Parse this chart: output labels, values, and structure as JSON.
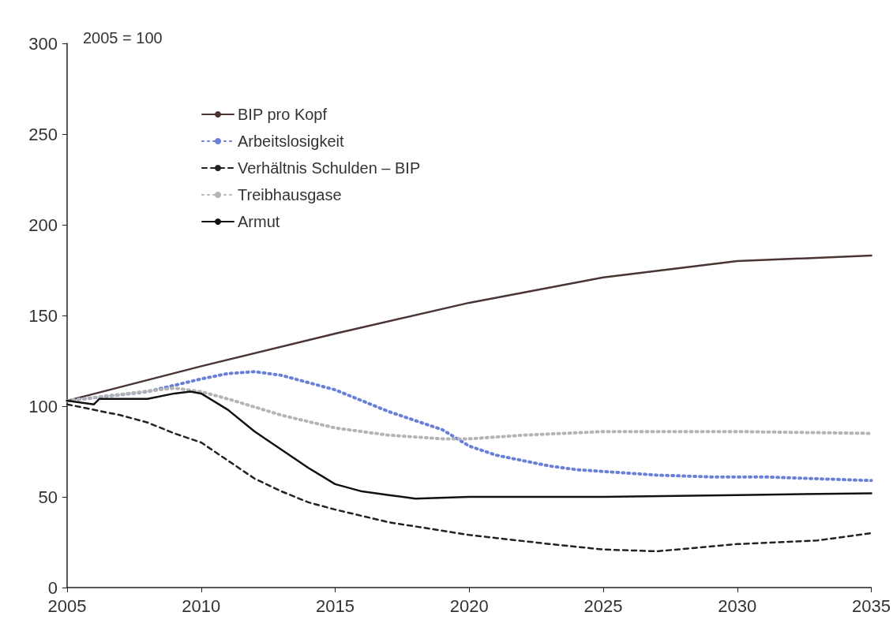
{
  "chart_data": {
    "type": "line",
    "annotations": [
      "2005 = 100"
    ],
    "xlim": [
      2005,
      2035
    ],
    "xticks": [
      2005,
      2010,
      2015,
      2020,
      2025,
      2030,
      2035
    ],
    "ylim": [
      0,
      300
    ],
    "yticks": [
      0,
      50,
      100,
      150,
      200,
      250,
      300
    ],
    "grid": false,
    "legend": "top left",
    "marker": "none",
    "series": [
      {
        "name": "BIP pro Kopf",
        "color": "#4a3434",
        "line_style": "solid",
        "x": [
          2005,
          2010,
          2015,
          2020,
          2025,
          2030,
          2035
        ],
        "values": [
          103,
          122,
          140,
          157,
          171,
          180,
          183
        ]
      },
      {
        "name": "Arbeitslosigkeit",
        "color": "#6a80d8",
        "line_style": "dotted",
        "x": [
          2005,
          2008,
          2010,
          2011,
          2012,
          2013,
          2014,
          2015,
          2016,
          2017,
          2018,
          2019,
          2020,
          2021,
          2022,
          2023,
          2024,
          2025,
          2027,
          2029,
          2031,
          2033,
          2035
        ],
        "values": [
          103,
          108,
          115,
          118,
          119,
          117,
          113,
          109,
          103,
          97,
          92,
          87,
          78,
          73,
          70,
          67,
          65,
          64,
          62,
          61,
          61,
          60,
          59
        ]
      },
      {
        "name": "Verhältnis Schulden – BIP",
        "color": "#222222",
        "line_style": "dashed",
        "x": [
          2005,
          2007,
          2008,
          2009,
          2010,
          2011,
          2012,
          2013,
          2014,
          2015,
          2017,
          2020,
          2023,
          2025,
          2027,
          2030,
          2033,
          2035
        ],
        "values": [
          101,
          95,
          91,
          85,
          80,
          70,
          60,
          53,
          47,
          43,
          36,
          29,
          24,
          21,
          20,
          24,
          26,
          30
        ]
      },
      {
        "name": "Treibhausgase",
        "color": "#b4b4b4",
        "line_style": "dotted",
        "x": [
          2005,
          2009,
          2010,
          2011,
          2013,
          2015,
          2017,
          2019,
          2020,
          2022,
          2025,
          2030,
          2035
        ],
        "values": [
          103,
          110,
          108,
          104,
          95,
          88,
          84,
          82,
          82,
          84,
          86,
          86,
          85
        ]
      },
      {
        "name": "Armut",
        "color": "#111111",
        "line_style": "solid",
        "x": [
          2005,
          2006,
          2006.2,
          2008,
          2009,
          2009.6,
          2010,
          2011,
          2012,
          2013,
          2014,
          2015,
          2016,
          2017,
          2018,
          2020,
          2025,
          2030,
          2035
        ],
        "values": [
          103,
          101,
          104,
          104,
          107,
          108,
          107,
          98,
          86,
          76,
          66,
          57,
          53,
          51,
          49,
          50,
          50,
          51,
          52
        ]
      }
    ]
  }
}
